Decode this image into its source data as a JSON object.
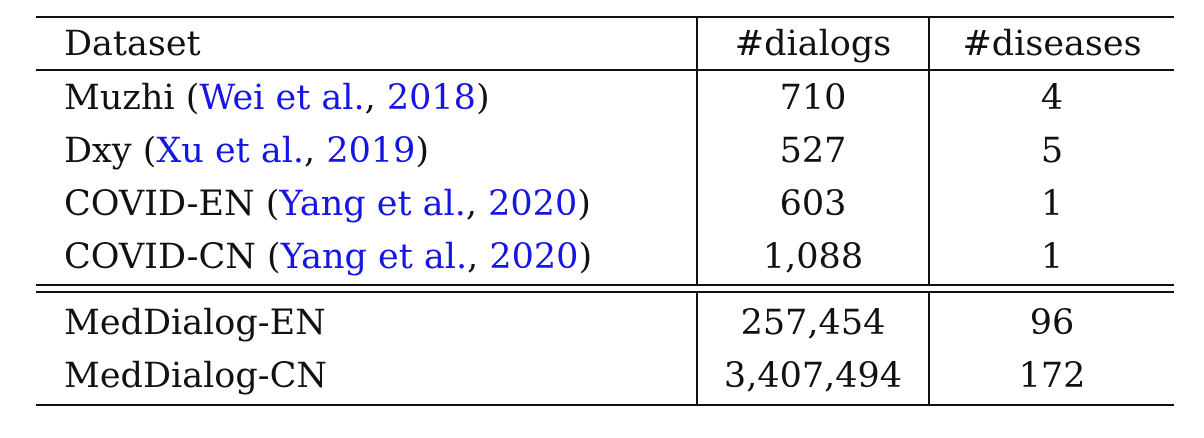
{
  "table": {
    "headers": [
      "Dataset",
      "#dialogs",
      "#diseases"
    ],
    "rows": [
      {
        "name": "Muzhi",
        "cite_authors": "Wei et al.",
        "cite_year": "2018",
        "dialogs": "710",
        "diseases": "4"
      },
      {
        "name": "Dxy",
        "cite_authors": "Xu et al.",
        "cite_year": "2019",
        "dialogs": "527",
        "diseases": "5"
      },
      {
        "name": "COVID-EN",
        "cite_authors": "Yang et al.",
        "cite_year": "2020",
        "dialogs": "603",
        "diseases": "1"
      },
      {
        "name": "COVID-CN",
        "cite_authors": "Yang et al.",
        "cite_year": "2020",
        "dialogs": "1,088",
        "diseases": "1"
      }
    ],
    "ours": [
      {
        "name": "MedDialog-EN",
        "dialogs": "257,454",
        "diseases": "96"
      },
      {
        "name": "MedDialog-CN",
        "dialogs": "3,407,494",
        "diseases": "172"
      }
    ]
  },
  "colors": {
    "citation": "#1515e6",
    "text": "#111111"
  }
}
